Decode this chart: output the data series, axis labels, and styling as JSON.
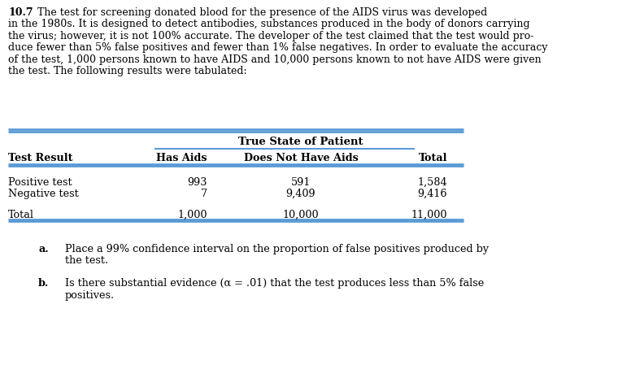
{
  "problem_number": "10.7",
  "para_lines": [
    "\\textbf{10.7}  The test for screening donated blood for the presence of the AIDS virus was developed",
    "in the 1980s. It is designed to detect antibodies, substances produced in the body of donors carrying",
    "the virus; however, it is not 100% accurate. The developer of the test claimed that the test would pro-",
    "duce fewer than 5% false positives and fewer than 1% false negatives. In order to evaluate the accuracy",
    "of the test, 1,000 persons known to have AIDS and 10,000 persons known to not have AIDS were given",
    "the test. The following results were tabulated:"
  ],
  "table_header_top": "True State of Patient",
  "col_headers": [
    "Test Result",
    "Has Aids",
    "Does Not Have Aids",
    "Total"
  ],
  "rows": [
    [
      "Positive test",
      "993",
      "591",
      "1,584"
    ],
    [
      "Negative test",
      "7",
      "9,409",
      "9,416"
    ],
    [
      "Total",
      "1,000",
      "10,000",
      "11,000"
    ]
  ],
  "questions": [
    [
      "Place a 99% confidence interval on the proportion of false positives produced by",
      "the test."
    ],
    [
      "Is there substantial evidence (α = .01) that the test produces less than 5% false",
      "positives."
    ]
  ],
  "question_labels": [
    "a.",
    "b."
  ],
  "bg_color": "#ffffff",
  "text_color": "#000000",
  "line_color": "#5b9bd5",
  "font_family": "DejaVu Serif"
}
